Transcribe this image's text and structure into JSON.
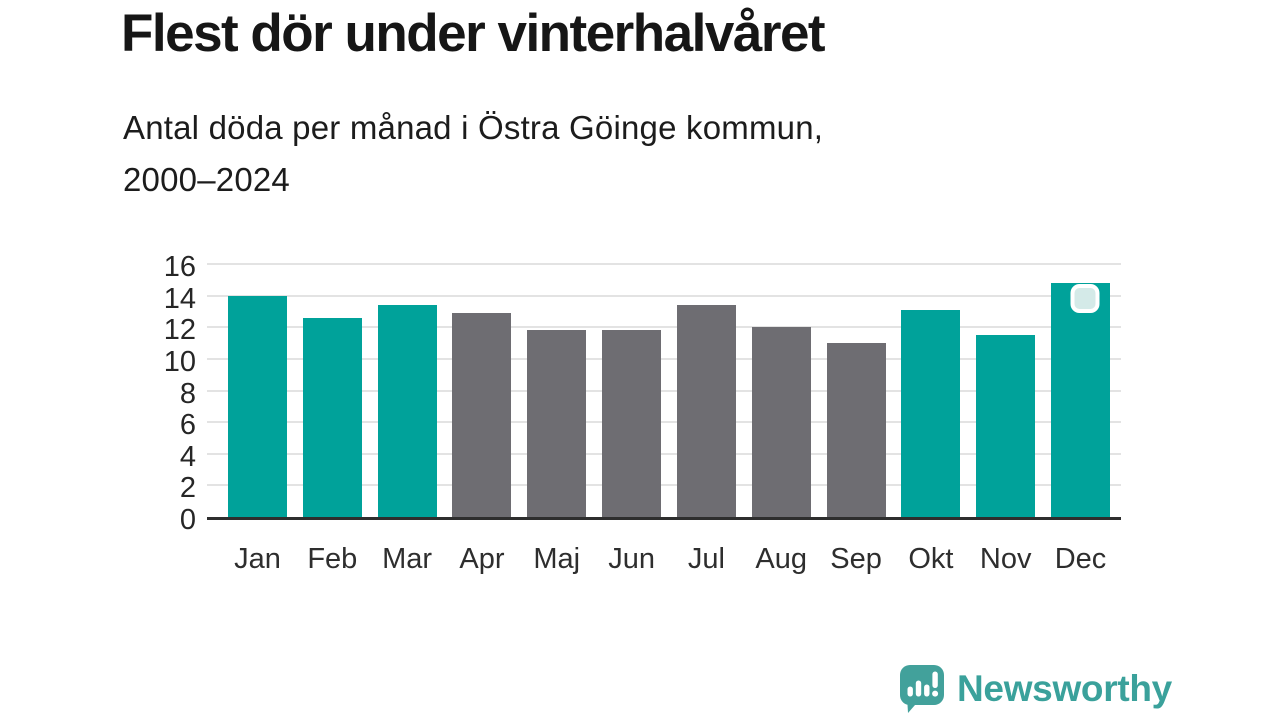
{
  "header": {
    "title": "Flest dör under vinterhalvåret",
    "subtitle_line1": "Antal döda per månad i Östra Göinge kommun,",
    "subtitle_line2": "2000–2024"
  },
  "chart_data": {
    "type": "bar",
    "title": "Flest dör under vinterhalvåret",
    "subtitle": "Antal döda per månad i Östra Göinge kommun, 2000–2024",
    "categories": [
      "Jan",
      "Feb",
      "Mar",
      "Apr",
      "Maj",
      "Jun",
      "Jul",
      "Aug",
      "Sep",
      "Okt",
      "Nov",
      "Dec"
    ],
    "values": [
      14.0,
      12.6,
      13.4,
      12.9,
      11.8,
      11.8,
      13.4,
      12.0,
      11.0,
      13.1,
      11.5,
      14.8
    ],
    "highlighted_categories": [
      "Jan",
      "Feb",
      "Mar",
      "Okt",
      "Nov",
      "Dec"
    ],
    "marker_on_category": "Dec",
    "xlabel": "",
    "ylabel": "",
    "ylim": [
      0,
      16
    ],
    "yticks": [
      0,
      2,
      4,
      6,
      8,
      10,
      12,
      14,
      16
    ],
    "grid": true,
    "legend": "none",
    "colors": {
      "highlight_bar": "#00a29a",
      "default_bar": "#6e6d72",
      "gridline": "#e3e3e3",
      "axis_line": "#2e2e2e",
      "tick_label": "#262626",
      "marker_fill": "#d4eae8",
      "marker_border": "#ffffff"
    }
  },
  "footer": {
    "brand": "Newsworthy",
    "brand_color": "#3aa19b",
    "logo_icon": "newsworthy-speech-bubble-bar-chart-icon"
  }
}
